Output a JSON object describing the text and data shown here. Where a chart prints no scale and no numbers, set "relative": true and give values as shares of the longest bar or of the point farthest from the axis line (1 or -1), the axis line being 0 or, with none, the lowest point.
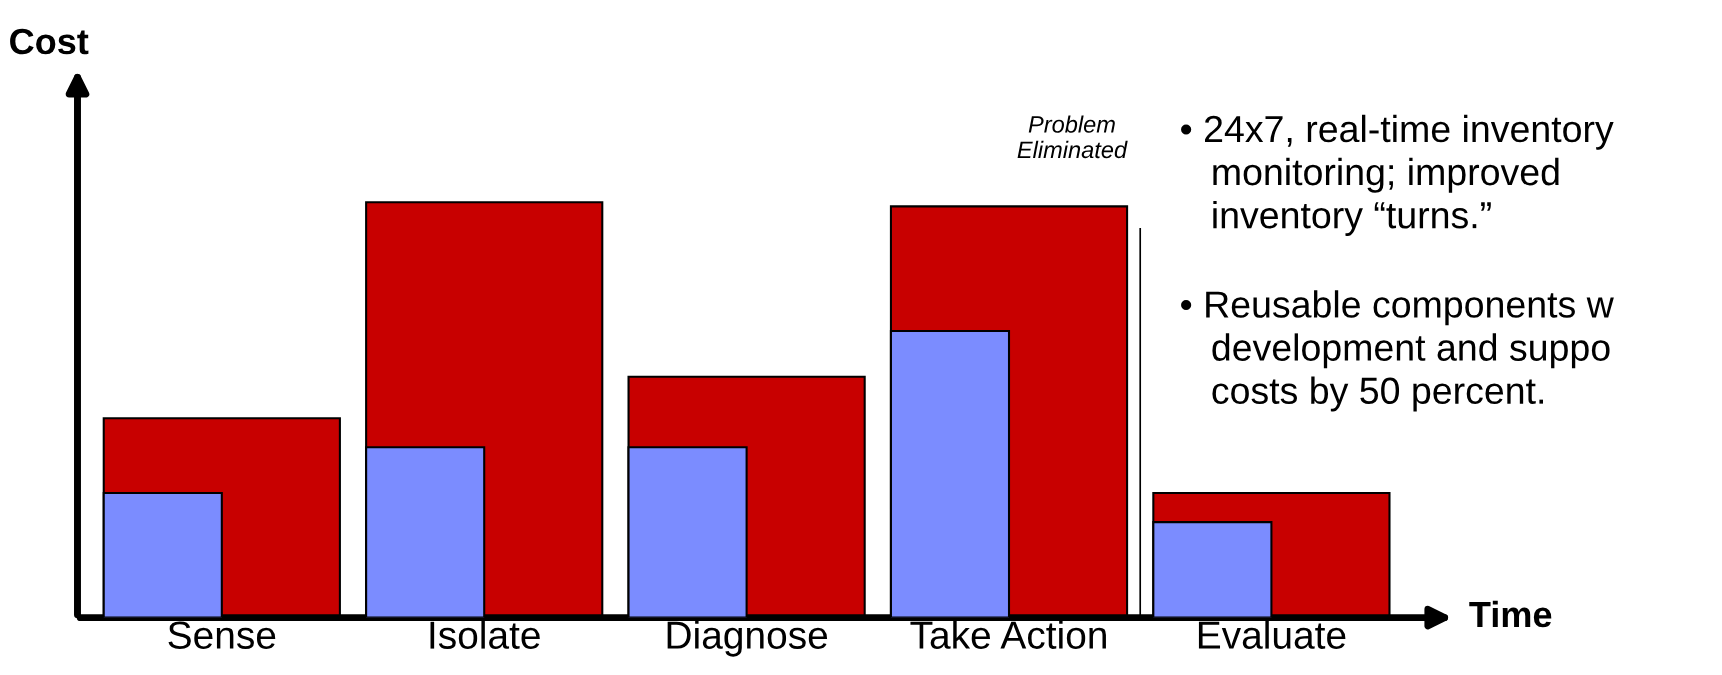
{
  "chart_data": {
    "type": "bar",
    "relative": true,
    "ylabel": "Cost",
    "xlabel": "Time",
    "categories": [
      "Sense",
      "Isolate",
      "Diagnose",
      "Take Action",
      "Evaluate"
    ],
    "series": [
      {
        "color": "#7b8cff",
        "values": [
          0.3,
          0.41,
          0.41,
          0.69,
          0.23
        ]
      },
      {
        "color": "#c80000",
        "values": [
          0.48,
          1.0,
          0.58,
          0.99,
          0.3
        ]
      }
    ],
    "annotations": [
      "Problem\nEliminated",
      "• 24x7, real-time inventory\n   monitoring; improved\n   inventory “turns.”",
      "• Reusable components w\n   development and suppo\n   costs by 50 percent."
    ],
    "legend": false,
    "grid": false
  }
}
